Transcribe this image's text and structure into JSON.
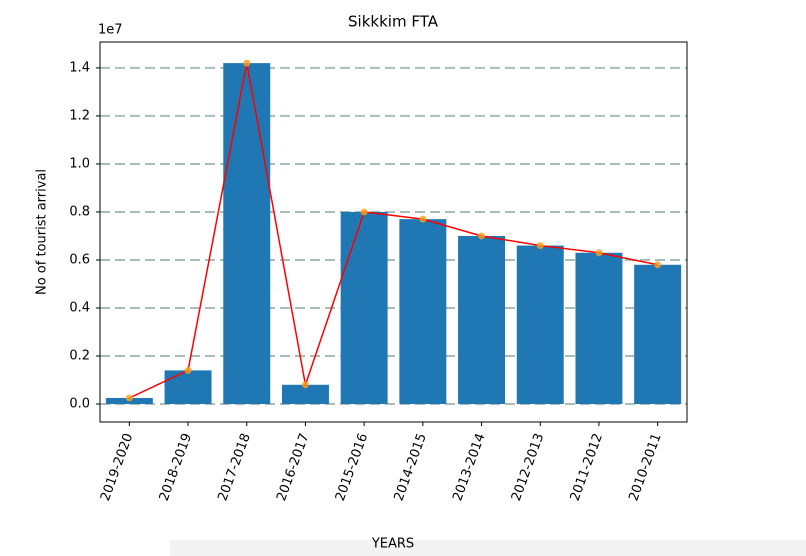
{
  "chart_data": {
    "type": "bar",
    "title": "Sikkkim FTA",
    "x_label": "YEARS",
    "y_label": "No of tourist arrival",
    "y_offset_text": "1e7",
    "categories": [
      "2019-2020",
      "2018-2019",
      "2017-2018",
      "2016-2017",
      "2015-2016",
      "2014-2015",
      "2013-2014",
      "2012-2013",
      "2011-2012",
      "2010-2011"
    ],
    "values": [
      0.025,
      0.14,
      1.42,
      0.08,
      0.8,
      0.77,
      0.7,
      0.66,
      0.63,
      0.58
    ],
    "color": "#1f77b4",
    "line_color": "#ff0000",
    "marker_color": "#ff9f1c",
    "ylim": [
      -0.075,
      1.508
    ],
    "yticks": [
      {
        "value": 0,
        "label": "0.0"
      },
      0.2,
      0.4,
      0.6,
      0.8,
      {
        "value": 1,
        "label": "1.0"
      },
      1.2,
      1.4
    ],
    "grid": true
  }
}
